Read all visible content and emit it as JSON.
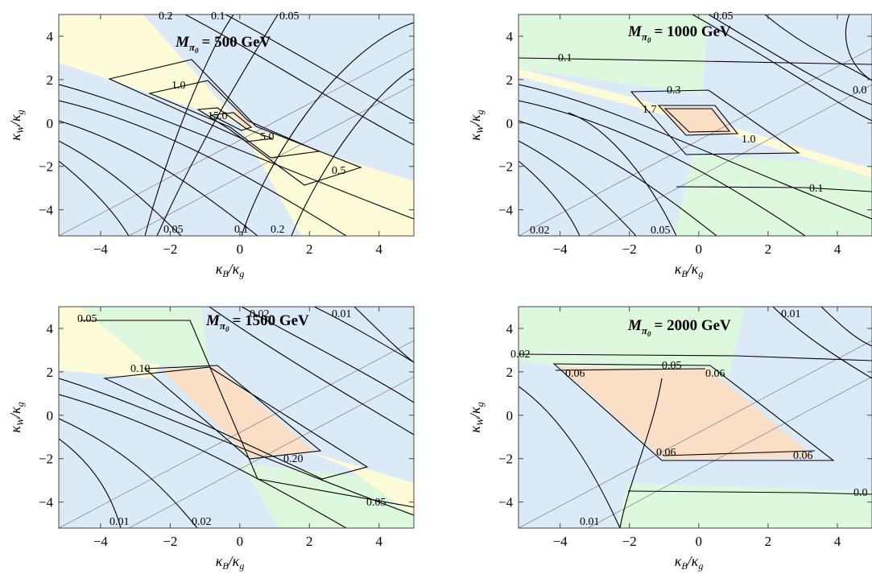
{
  "colors": {
    "blue": "#dceaf8",
    "yellow": "#fdfbd8",
    "green": "#def8df",
    "peach": "#fadec6",
    "frame": "#444444",
    "contour": "#000000",
    "diag": "#8a8a8a"
  },
  "axes": {
    "xlabel_base": "κ",
    "xlabel_sub_num": "B",
    "xlabel_sub_den": "g",
    "ylabel_base": "κ",
    "ylabel_sub_num": "W",
    "ylabel_sub_den": "g",
    "xticks": [
      "−4",
      "−2",
      "0",
      "2",
      "4"
    ],
    "yticks": [
      "4",
      "2",
      "0",
      "−2",
      "−4"
    ]
  },
  "chart_data": [
    {
      "type": "contour",
      "title_prefix": "M",
      "title_sub": "π",
      "title_subsub": "0",
      "title_value": "= 500 GeV",
      "xlim": [
        -5.2,
        5
      ],
      "ylim": [
        -5.2,
        5
      ],
      "grid": false,
      "labels": [
        "0.2",
        "0.1",
        "0.05",
        "1.0",
        "15.0",
        "5.0",
        "0.5",
        "0.05",
        "0.1",
        "0.2"
      ]
    },
    {
      "type": "contour",
      "title_prefix": "M",
      "title_sub": "π",
      "title_subsub": "0",
      "title_value": "= 1000 GeV",
      "xlim": [
        -5.2,
        5
      ],
      "ylim": [
        -5.2,
        5
      ],
      "grid": false,
      "labels": [
        "0.05",
        "0.1",
        "0.3",
        "1.7",
        "1.0",
        "0.1",
        "0.02",
        "0.05",
        "0.0"
      ]
    },
    {
      "type": "contour",
      "title_prefix": "M",
      "title_sub": "π",
      "title_subsub": "0",
      "title_value": "= 1500 GeV",
      "xlim": [
        -5.2,
        5
      ],
      "ylim": [
        -5.2,
        5
      ],
      "grid": false,
      "labels": [
        "0.05",
        "0.02",
        "0.01",
        "0.10",
        "0.20",
        "0.01",
        "0.02",
        "0.05"
      ]
    },
    {
      "type": "contour",
      "title_prefix": "M",
      "title_sub": "π",
      "title_subsub": "0",
      "title_value": "= 2000 GeV",
      "xlim": [
        -5.2,
        5
      ],
      "ylim": [
        -5.2,
        5
      ],
      "grid": false,
      "labels": [
        "0.01",
        "0.02",
        "0.05",
        "0.06",
        "0.06",
        "0.06",
        "0.06",
        "0.0",
        "0.01"
      ]
    }
  ]
}
